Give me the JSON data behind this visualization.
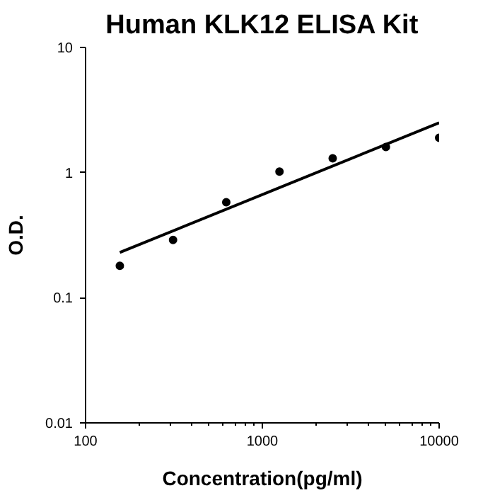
{
  "chart_data": {
    "type": "scatter",
    "title": "Human KLK12 ELISA Kit",
    "xlabel": "Concentration(pg/ml)",
    "ylabel": "O.D.",
    "log": "xy",
    "marker": "circle",
    "grid": false,
    "xlim": [
      100,
      10000
    ],
    "ylim": [
      0.01,
      10
    ],
    "xticks": [
      100,
      {
        "value": 200,
        "label": null
      },
      {
        "value": 300,
        "label": null
      },
      {
        "value": 400,
        "label": null
      },
      {
        "value": 500,
        "label": null
      },
      {
        "value": 600,
        "label": null
      },
      {
        "value": 700,
        "label": null
      },
      {
        "value": 800,
        "label": null
      },
      {
        "value": 900,
        "label": null
      },
      1000,
      {
        "value": 2000,
        "label": null
      },
      {
        "value": 3000,
        "label": null
      },
      {
        "value": 4000,
        "label": null
      },
      {
        "value": 5000,
        "label": null
      },
      {
        "value": 6000,
        "label": null
      },
      {
        "value": 7000,
        "label": null
      },
      {
        "value": 8000,
        "label": null
      },
      {
        "value": 9000,
        "label": null
      },
      10000
    ],
    "yticks": [
      0.01,
      0.1,
      1,
      10
    ],
    "series": [
      {
        "color": "#000000",
        "x": [
          156.25,
          312.5,
          625,
          1250,
          2500,
          5000,
          10000
        ],
        "values": [
          0.18,
          0.29,
          0.58,
          1.02,
          1.3,
          1.6,
          1.9
        ]
      },
      {
        "type": "line",
        "marker": "none",
        "color": "#000000",
        "x": [
          156.25,
          10000
        ],
        "values": [
          0.23,
          2.5
        ]
      }
    ]
  }
}
